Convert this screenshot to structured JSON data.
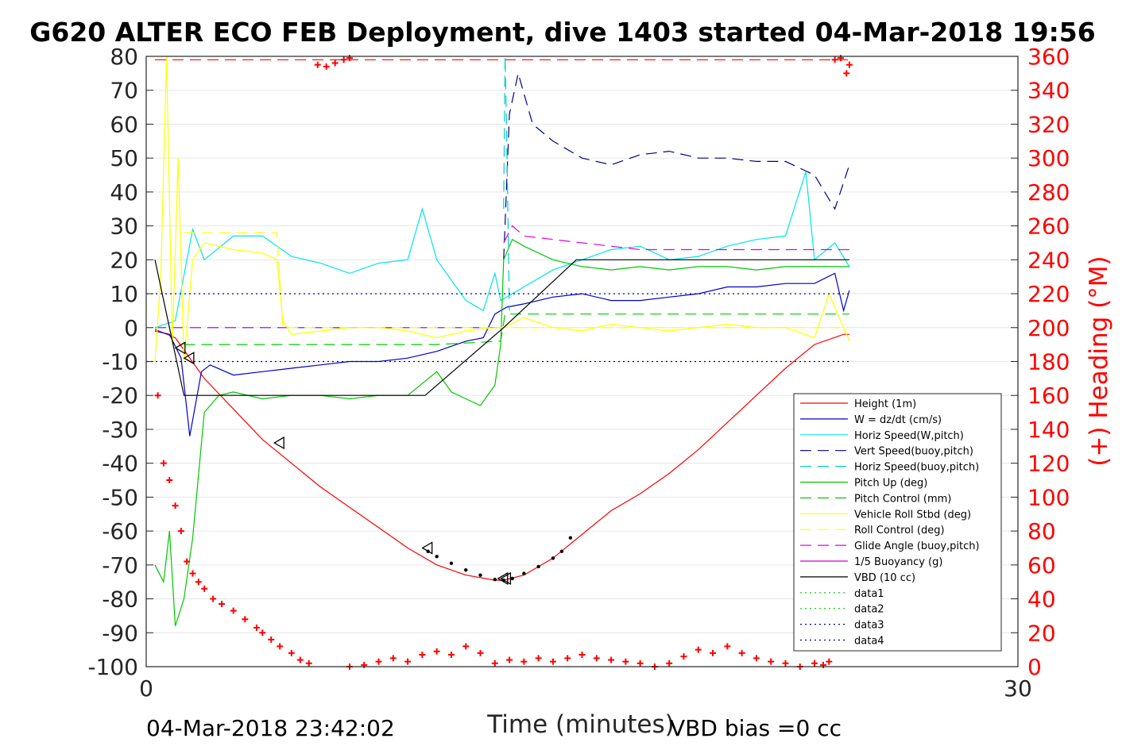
{
  "chart_data": {
    "type": "line",
    "title": "G620 ALTER ECO FEB Deployment, dive 1403 started 04-Mar-2018 19:56",
    "xlabel": "Time (minutes)",
    "ylabel_right": "(+) Heading (°M)",
    "xlim": [
      0,
      30
    ],
    "ylim": [
      -100,
      80
    ],
    "ylim_right": [
      0,
      360
    ],
    "x_ticks": [
      "0",
      "30"
    ],
    "y_ticks": [
      "80",
      "70",
      "60",
      "50",
      "40",
      "30",
      "20",
      "10",
      "0",
      "-10",
      "-20",
      "-30",
      "-40",
      "-50",
      "-60",
      "-70",
      "-80",
      "-90",
      "-100"
    ],
    "y_right_ticks": [
      "360",
      "340",
      "320",
      "300",
      "280",
      "260",
      "240",
      "220",
      "200",
      "180",
      "160",
      "140",
      "120",
      "100",
      "80",
      "60",
      "40",
      "20",
      "0"
    ],
    "grid": "horizontal",
    "legend_position": "lower-right",
    "footer_left": "04-Mar-2018 23:42:02",
    "footer_right": "VBD bias =0 cc",
    "series": [
      {
        "name": "Height (1m)",
        "color": "#ff0000",
        "style": "solid",
        "x": [
          0.3,
          1,
          2,
          3,
          4,
          5,
          6,
          7,
          8,
          9,
          10,
          11,
          12,
          12.3,
          13,
          14,
          15,
          16,
          17,
          18,
          19,
          20,
          21,
          22,
          23,
          24,
          24.2
        ],
        "y": [
          -0.5,
          -3,
          -15,
          -24,
          -33,
          -40,
          -47,
          -53,
          -59,
          -65,
          -70,
          -73,
          -74.5,
          -74.5,
          -73,
          -68,
          -61,
          -54,
          -49,
          -43,
          -36,
          -28,
          -20,
          -12,
          -5,
          -2,
          -2
        ]
      },
      {
        "name": "W = dz/dt (cm/s)",
        "color": "#0000cc",
        "style": "solid",
        "x": [
          0.3,
          0.8,
          1.2,
          1.5,
          1.9,
          2.2,
          3,
          4,
          5,
          6,
          7,
          8,
          9,
          10,
          11,
          11.6,
          12,
          12.4,
          13,
          14,
          15,
          16,
          17,
          18,
          19,
          20,
          21,
          22,
          23,
          23.7,
          24,
          24.2
        ],
        "y": [
          -1,
          -2,
          -9,
          -32,
          -13,
          -11,
          -14,
          -13,
          -12,
          -11,
          -10,
          -10,
          -9,
          -7,
          -4,
          -3,
          4,
          6,
          7,
          9,
          10,
          8,
          8,
          9,
          10,
          12,
          12,
          13,
          13,
          16,
          5,
          11
        ]
      },
      {
        "name": "Horiz Speed(W,pitch)",
        "color": "#00e5e5",
        "style": "solid",
        "x": [
          0.3,
          1,
          1.6,
          2,
          3,
          4,
          5,
          6,
          7,
          8,
          9,
          9.5,
          10,
          11,
          11.6,
          12,
          12.2,
          13,
          14,
          15,
          16,
          17,
          18,
          19,
          20,
          21,
          22,
          22.7,
          23,
          23.7,
          24.2
        ],
        "y": [
          0,
          2,
          29,
          20,
          27,
          27,
          21,
          19,
          16,
          19,
          20,
          35,
          20,
          8,
          5,
          16,
          8,
          12,
          17,
          20,
          23,
          24,
          20,
          21,
          24,
          26,
          27,
          46,
          20,
          25,
          18
        ]
      },
      {
        "name": "Vert Speed(buoy,pitch)",
        "color": "#00008b",
        "style": "dashed",
        "x": [
          12.3,
          12.5,
          12.8,
          13.3,
          14,
          15,
          16,
          17,
          18,
          19,
          20,
          21,
          22,
          23,
          23.7,
          24.2
        ],
        "y": [
          20,
          63,
          75,
          60,
          55,
          50,
          48,
          51,
          52,
          50,
          50,
          49,
          49,
          45,
          35,
          48
        ]
      },
      {
        "name": "Horiz Speed(buoy,pitch)",
        "color": "#00cccc",
        "style": "dashed",
        "x": [
          12.3,
          12.35,
          12.4,
          12.5
        ],
        "y": [
          35,
          80,
          60,
          5
        ]
      },
      {
        "name": "Pitch Up (deg)",
        "color": "#00c800",
        "style": "solid",
        "x": [
          0.3,
          0.6,
          0.8,
          1,
          1.3,
          1.6,
          2,
          2.5,
          3,
          4,
          5,
          6,
          7,
          8,
          9,
          10,
          10.5,
          11,
          11.5,
          12,
          12.2,
          12.3,
          12.6,
          13,
          14,
          15,
          16,
          17,
          18,
          19,
          20,
          21,
          22,
          23,
          24.2
        ],
        "y": [
          -70,
          -75,
          -60,
          -88,
          -80,
          -62,
          -25,
          -20,
          -19,
          -21,
          -20,
          -20,
          -21,
          -20,
          -20,
          -13,
          -19,
          -21,
          -23,
          -17,
          -5,
          20,
          26,
          24,
          20,
          18,
          17,
          18,
          17,
          18,
          18,
          17,
          18,
          18,
          18
        ]
      },
      {
        "name": "Pitch Control (mm)",
        "color": "#00cc00",
        "style": "dashed",
        "x": [
          1.3,
          4,
          6,
          10,
          12.2,
          12.35,
          13,
          24.2
        ],
        "y": [
          -5,
          -5,
          -5,
          -5,
          -4,
          4,
          4,
          4
        ]
      },
      {
        "name": "Vehicle Roll Stbd (deg)",
        "color": "#ffff00",
        "style": "solid",
        "x": [
          0.3,
          0.5,
          0.7,
          0.9,
          1.1,
          1.3,
          1.6,
          2,
          3,
          4,
          4.5,
          4.7,
          5,
          6,
          7,
          8,
          9,
          10,
          11,
          12,
          12.3,
          13,
          14,
          15,
          16,
          17,
          18,
          19,
          20,
          21,
          22,
          23,
          23.5,
          24.2
        ],
        "y": [
          -10,
          15,
          80,
          -5,
          50,
          -10,
          20,
          25,
          23,
          22,
          20,
          2,
          -2,
          -1,
          0,
          0,
          -1,
          -3,
          -1,
          0,
          0,
          3,
          0,
          -1,
          1,
          0,
          -1,
          0,
          1,
          0,
          0,
          -3,
          10,
          -4
        ]
      },
      {
        "name": "Roll Control (deg)",
        "color": "#ffff00",
        "style": "dashed",
        "x": [
          1.3,
          4.5,
          4.7,
          24.2
        ],
        "y": [
          28,
          28,
          0,
          0
        ]
      },
      {
        "name": "Glide Angle (buoy,pitch)",
        "color": "#e000e0",
        "style": "dashed",
        "x": [
          12.3,
          12.6,
          13,
          14,
          15,
          16,
          17,
          18,
          19,
          20,
          21,
          22,
          23,
          24.2
        ],
        "y": [
          25,
          30,
          27,
          26,
          25,
          24,
          23,
          23,
          23,
          23,
          23,
          23,
          23,
          23
        ]
      },
      {
        "name": "1/5 Buoyancy (g)",
        "color": "#cc00cc",
        "style": "solid",
        "x": [],
        "y": []
      },
      {
        "name": "VBD (10 cc)",
        "color": "#000000",
        "style": "solid",
        "x": [
          0.3,
          1.3,
          9.6,
          12.3,
          14.8,
          24.2
        ],
        "y": [
          20,
          -20,
          -20,
          0,
          20,
          20
        ]
      },
      {
        "name": "data1",
        "color": "#00cc00",
        "style": "dotted",
        "x": [],
        "y": []
      },
      {
        "name": "data2",
        "color": "#00cc00",
        "style": "dotted",
        "x": [],
        "y": []
      },
      {
        "name": "data3",
        "color": "#000099",
        "style": "dotted",
        "x": [
          0,
          24.2
        ],
        "y": [
          10,
          10
        ]
      },
      {
        "name": "data4",
        "color": "#000099",
        "style": "dotted",
        "x": [
          0,
          24.2
        ],
        "y": [
          -10,
          -10
        ]
      }
    ],
    "reference_lines": [
      {
        "color": "#7f00ff",
        "style": "dashed",
        "x": [
          0.3,
          12.3
        ],
        "y": [
          0,
          0
        ]
      },
      {
        "color": "#ff0000",
        "style": "dashed",
        "x": [
          0.3,
          24.2
        ],
        "y_right": [
          358,
          358
        ]
      }
    ],
    "heading_markers": {
      "color": "#ff0000",
      "x": [
        0.4,
        0.6,
        0.8,
        1,
        1.2,
        1.4,
        1.6,
        1.8,
        2,
        2.3,
        2.6,
        3,
        3.4,
        3.8,
        4,
        4.3,
        4.6,
        5,
        5.3,
        5.6,
        5.9,
        6.2,
        6.5,
        6.8,
        7,
        7,
        7.5,
        8,
        8.5,
        9,
        9.5,
        10,
        10.5,
        11,
        11.5,
        12,
        12.5,
        13,
        13.5,
        14,
        14.5,
        15,
        15.5,
        16,
        16.5,
        17,
        17.5,
        18,
        18.5,
        19,
        19.5,
        20,
        20.5,
        21,
        21.5,
        22,
        22.5,
        23,
        23.3,
        23.5,
        23.7,
        23.9,
        24.1,
        24.2
      ],
      "y_right": [
        160,
        120,
        110,
        95,
        80,
        62,
        55,
        50,
        46,
        40,
        37,
        33,
        28,
        23,
        20,
        16,
        12,
        8,
        4,
        2,
        355,
        354,
        356,
        358,
        359,
        0,
        1,
        3,
        5,
        3,
        7,
        9,
        7,
        12,
        8,
        2,
        4,
        3,
        5,
        3,
        5,
        7,
        5,
        4,
        3,
        2,
        0,
        2,
        6,
        10,
        8,
        12,
        8,
        5,
        3,
        2,
        0,
        2,
        1,
        3,
        358,
        359,
        350,
        355
      ]
    },
    "open_markers": {
      "x": [
        1.2,
        1.5,
        4.6,
        9.7,
        12.3,
        12.4
      ],
      "y": [
        -6,
        -9,
        -34,
        -65,
        -74,
        -74
      ]
    },
    "gc_points": {
      "x": [
        9.7,
        10,
        10.5,
        11,
        11.5,
        12,
        12.3,
        12.6,
        13,
        13.5,
        14,
        14.3,
        14.6
      ],
      "y": [
        -66,
        -67.5,
        -69.5,
        -71.5,
        -73,
        -74.3,
        -74.5,
        -74,
        -72.5,
        -70.5,
        -68,
        -66,
        -62
      ]
    }
  }
}
